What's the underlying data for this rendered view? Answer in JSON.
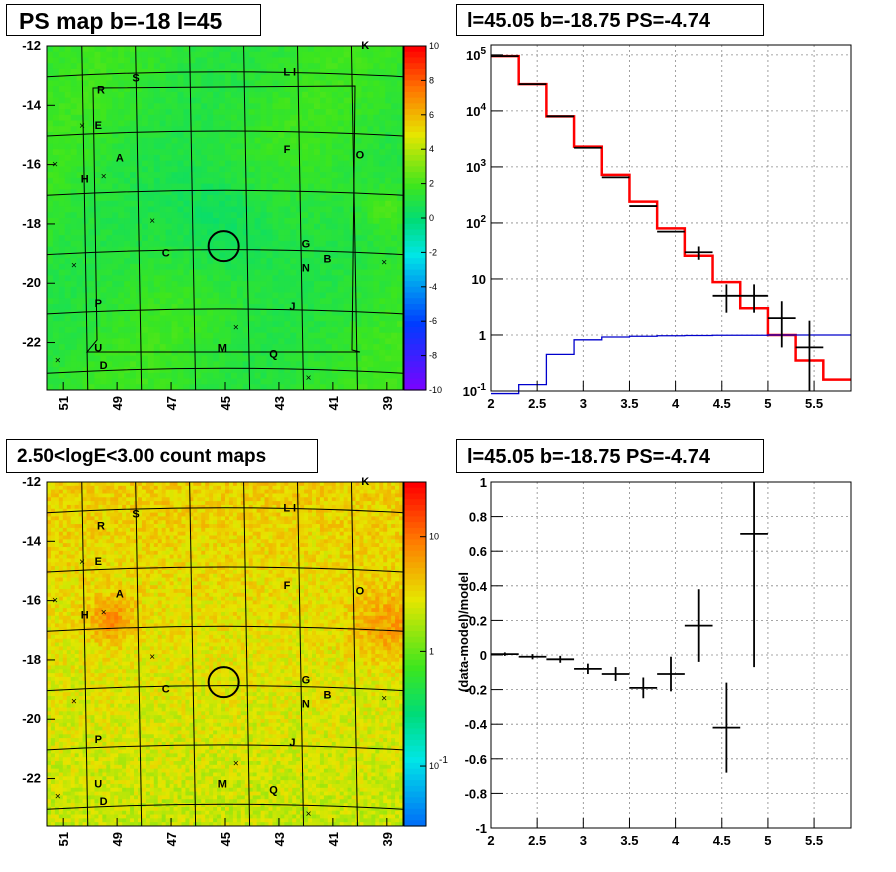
{
  "chart_data": [
    {
      "type": "heatmap",
      "title": "PS map b=-18 l=45",
      "xlim": [
        51.6,
        38.4
      ],
      "ylim": [
        -23.6,
        -12
      ],
      "x_ticks": [
        "51",
        "49",
        "47",
        "45",
        "43",
        "41",
        "39"
      ],
      "y_ticks": [
        "-12",
        "-14",
        "-16",
        "-18",
        "-20",
        "-22"
      ],
      "colorbar": {
        "min": -10,
        "max": 10,
        "scale": "linear",
        "ticks": [
          "10",
          "8",
          "6",
          "4",
          "2",
          "0",
          "-2",
          "-4",
          "-6",
          "-8",
          "-10"
        ]
      },
      "grid": true,
      "circle": {
        "l": 45.05,
        "b": -18.75
      },
      "source_labels": [
        {
          "t": "K",
          "l": 39.8,
          "b": -12.1
        },
        {
          "t": "S",
          "l": 48.3,
          "b": -13.2
        },
        {
          "t": "L I",
          "l": 42.6,
          "b": -13.0
        },
        {
          "t": "R",
          "l": 49.6,
          "b": -13.6
        },
        {
          "t": "E",
          "l": 49.7,
          "b": -14.8
        },
        {
          "t": "F",
          "l": 42.7,
          "b": -15.6
        },
        {
          "t": "O",
          "l": 40.0,
          "b": -15.8
        },
        {
          "t": "A",
          "l": 48.9,
          "b": -15.9
        },
        {
          "t": "H",
          "l": 50.2,
          "b": -16.6
        },
        {
          "t": "G",
          "l": 42.0,
          "b": -18.8
        },
        {
          "t": "C",
          "l": 47.2,
          "b": -19.1
        },
        {
          "t": "B",
          "l": 41.2,
          "b": -19.3
        },
        {
          "t": "N",
          "l": 42.0,
          "b": -19.6
        },
        {
          "t": "P",
          "l": 49.7,
          "b": -20.8
        },
        {
          "t": "J",
          "l": 42.5,
          "b": -20.9
        },
        {
          "t": "U",
          "l": 49.7,
          "b": -22.3
        },
        {
          "t": "M",
          "l": 45.1,
          "b": -22.3
        },
        {
          "t": "Q",
          "l": 43.2,
          "b": -22.5
        },
        {
          "t": "D",
          "l": 49.5,
          "b": -22.9
        }
      ],
      "markers_x": [
        {
          "l": 50.3,
          "b": -14.7
        },
        {
          "l": 49.5,
          "b": -16.4
        },
        {
          "l": 51.3,
          "b": -16.0
        },
        {
          "l": 47.7,
          "b": -17.9
        },
        {
          "l": 50.6,
          "b": -19.4
        },
        {
          "l": 39.1,
          "b": -19.3
        },
        {
          "l": 44.6,
          "b": -21.5
        },
        {
          "l": 51.2,
          "b": -22.6
        },
        {
          "l": 41.9,
          "b": -23.2
        }
      ]
    },
    {
      "type": "line",
      "title": "l=45.05 b=-18.75 PS=-4.74",
      "xlim": [
        2,
        5.9
      ],
      "ylim": [
        0.1,
        150000
      ],
      "y_scale": "log",
      "x_ticks": [
        "2",
        "2.5",
        "3",
        "3.5",
        "4",
        "4.5",
        "5",
        "5.5"
      ],
      "y_ticks": [
        "10^5",
        "10^4",
        "10^3",
        "10^2",
        "10",
        "1",
        "10^-1"
      ],
      "grid": true,
      "series": [
        {
          "name": "",
          "style": "step",
          "color": "#ff0000",
          "edges": [
            2,
            2.3,
            2.6,
            2.9,
            3.2,
            3.5,
            3.8,
            4.1,
            4.4,
            4.7,
            5.0,
            5.3,
            5.6,
            5.9
          ],
          "values": [
            95000,
            30000,
            8000,
            2300,
            720,
            240,
            80,
            26,
            8.8,
            3.0,
            1.0,
            0.35,
            0.16
          ]
        },
        {
          "name": "",
          "style": "step",
          "color": "#0000cc",
          "edges": [
            2,
            2.3,
            2.6,
            2.9,
            3.2,
            3.5,
            3.8,
            4.1,
            4.4,
            4.7,
            5.0,
            5.3,
            5.6,
            5.9
          ],
          "values": [
            0.06,
            0.13,
            0.45,
            0.82,
            0.92,
            0.95,
            0.97,
            0.98,
            0.99,
            0.99,
            1.0,
            1.0,
            1.0
          ]
        },
        {
          "name": "",
          "style": "errorbar",
          "color": "#000000",
          "x": [
            2.15,
            2.45,
            2.75,
            3.05,
            3.35,
            3.65,
            3.95,
            4.25,
            4.55,
            4.85,
            5.15,
            5.45
          ],
          "xerr": 0.15,
          "y": [
            95000,
            30000,
            8000,
            2200,
            650,
            200,
            70,
            30,
            5,
            5,
            2,
            0.6
          ],
          "yerr_low": [
            0,
            0,
            0,
            0,
            0,
            0,
            0,
            8,
            2.5,
            2.5,
            1.4,
            0.5
          ],
          "yerr_high": [
            0,
            0,
            0,
            0,
            0,
            0,
            0,
            8,
            3,
            3,
            2,
            1.2
          ]
        }
      ]
    },
    {
      "type": "heatmap",
      "title": "2.50<logE<3.00 count maps",
      "xlim": [
        51.6,
        38.4
      ],
      "ylim": [
        -23.6,
        -12
      ],
      "x_ticks": [
        "51",
        "49",
        "47",
        "45",
        "43",
        "41",
        "39"
      ],
      "y_ticks": [
        "-12",
        "-14",
        "-16",
        "-18",
        "-20",
        "-22"
      ],
      "colorbar": {
        "scale": "log",
        "min": 0.03,
        "max": 30,
        "ticks": [
          "10",
          "1",
          "10^-1"
        ]
      },
      "grid": true,
      "circle": {
        "l": 45.05,
        "b": -18.75
      }
    },
    {
      "type": "scatter",
      "title": "l=45.05 b=-18.75 PS=-4.74",
      "ylabel": "(data-model)/model",
      "xlim": [
        2,
        5.9
      ],
      "ylim": [
        -1,
        1
      ],
      "x_ticks": [
        "2",
        "2.5",
        "3",
        "3.5",
        "4",
        "4.5",
        "5",
        "5.5"
      ],
      "y_ticks": [
        "1",
        "0.8",
        "0.6",
        "0.4",
        "0.2",
        "0",
        "-0.2",
        "-0.4",
        "-0.6",
        "-0.8",
        "-1"
      ],
      "grid": true,
      "series": [
        {
          "name": "",
          "style": "errorbar",
          "color": "#000000",
          "x": [
            2.15,
            2.45,
            2.75,
            3.05,
            3.35,
            3.65,
            3.95,
            4.25,
            4.55,
            4.85
          ],
          "xerr": 0.15,
          "y": [
            0.005,
            -0.01,
            -0.025,
            -0.08,
            -0.11,
            -0.19,
            -0.11,
            0.17,
            -0.42,
            0.7
          ],
          "yerr": [
            0.01,
            0.015,
            0.02,
            0.03,
            0.04,
            0.06,
            0.1,
            0.21,
            0.26,
            0.77
          ]
        }
      ]
    }
  ]
}
